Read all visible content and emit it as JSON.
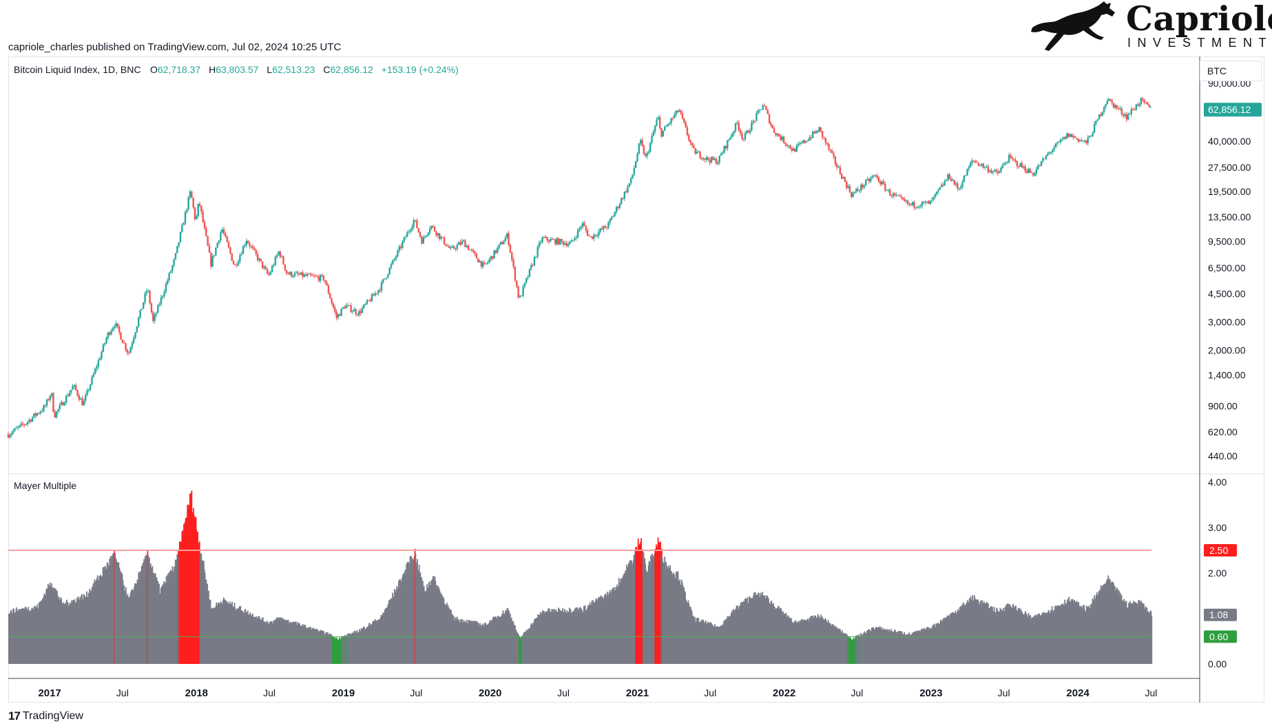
{
  "publisher": "capriole_charles published on TradingView.com, Jul 02, 2024 10:25 UTC",
  "brand": {
    "name": "Capriole",
    "subtitle": "INVESTMENTS"
  },
  "footer": {
    "logo": "17",
    "name": "TradingView"
  },
  "symbol_badge": "BTC",
  "colors": {
    "up": "#26a69a",
    "down": "#ef5350",
    "histogram": "#787b86",
    "hist_red": "#ff1e1e",
    "hist_green": "#2e9e3e",
    "upper_line": "#f4a1a1",
    "lower_line": "#4caf50"
  },
  "chart_data": [
    {
      "type": "candlestick",
      "title": "Bitcoin Liquid Index, 1D, BNC",
      "ohlc_readout": {
        "o_label": "O",
        "o": "62,718.37",
        "h_label": "H",
        "h": "63,803.57",
        "l_label": "L",
        "l": "62,513.23",
        "c_label": "C",
        "c": "62,856.12",
        "change": "+153.19 (+0.24%)"
      },
      "scale": "log",
      "last_price_label": "62,856.12",
      "y_ticks": [
        "90,000.00",
        "40,000.00",
        "27,500.00",
        "19,500.00",
        "13,500.00",
        "9,500.00",
        "6,500.00",
        "4,500.00",
        "3,000.00",
        "2,000.00",
        "1,400.00",
        "900.00",
        "620.00",
        "440.00"
      ],
      "y_tick_values": [
        90000,
        40000,
        27500,
        19500,
        13500,
        9500,
        6500,
        4500,
        3000,
        2000,
        1400,
        900,
        620,
        440
      ],
      "x_time_range": [
        "2016-09-20",
        "2024-07-02"
      ],
      "price_path": [
        [
          "2016-09-20",
          600
        ],
        [
          "2016-11-01",
          700
        ],
        [
          "2016-12-20",
          890
        ],
        [
          "2017-01-05",
          1100
        ],
        [
          "2017-01-12",
          780
        ],
        [
          "2017-03-01",
          1200
        ],
        [
          "2017-03-25",
          920
        ],
        [
          "2017-05-25",
          2500
        ],
        [
          "2017-06-12",
          2950
        ],
        [
          "2017-07-16",
          1900
        ],
        [
          "2017-09-01",
          4900
        ],
        [
          "2017-09-15",
          3000
        ],
        [
          "2017-11-08",
          7400
        ],
        [
          "2017-12-17",
          19500
        ],
        [
          "2017-12-30",
          12500
        ],
        [
          "2018-01-07",
          17000
        ],
        [
          "2018-02-06",
          6900
        ],
        [
          "2018-03-05",
          11500
        ],
        [
          "2018-04-06",
          6600
        ],
        [
          "2018-05-05",
          9800
        ],
        [
          "2018-06-29",
          5800
        ],
        [
          "2018-07-25",
          8300
        ],
        [
          "2018-08-14",
          6000
        ],
        [
          "2018-11-14",
          5600
        ],
        [
          "2018-12-15",
          3200
        ],
        [
          "2019-01-05",
          3800
        ],
        [
          "2019-02-08",
          3400
        ],
        [
          "2019-04-02",
          4900
        ],
        [
          "2019-05-15",
          8000
        ],
        [
          "2019-06-26",
          13000
        ],
        [
          "2019-07-16",
          9500
        ],
        [
          "2019-08-06",
          12000
        ],
        [
          "2019-09-25",
          8400
        ],
        [
          "2019-10-26",
          9500
        ],
        [
          "2019-12-17",
          6600
        ],
        [
          "2020-02-13",
          10400
        ],
        [
          "2020-03-13",
          4100
        ],
        [
          "2020-05-08",
          9900
        ],
        [
          "2020-07-20",
          9200
        ],
        [
          "2020-08-17",
          12300
        ],
        [
          "2020-09-05",
          10000
        ],
        [
          "2020-10-20",
          12000
        ],
        [
          "2020-12-17",
          23000
        ],
        [
          "2021-01-08",
          40000
        ],
        [
          "2021-01-22",
          31000
        ],
        [
          "2021-02-21",
          57000
        ],
        [
          "2021-02-28",
          44000
        ],
        [
          "2021-04-14",
          63000
        ],
        [
          "2021-05-19",
          35000
        ],
        [
          "2021-06-22",
          31000
        ],
        [
          "2021-07-20",
          30000
        ],
        [
          "2021-09-06",
          52000
        ],
        [
          "2021-09-21",
          41000
        ],
        [
          "2021-11-10",
          68000
        ],
        [
          "2021-12-04",
          47000
        ],
        [
          "2022-01-24",
          35000
        ],
        [
          "2022-03-29",
          47500
        ],
        [
          "2022-05-12",
          28000
        ],
        [
          "2022-06-18",
          18500
        ],
        [
          "2022-08-14",
          24500
        ],
        [
          "2022-09-20",
          19000
        ],
        [
          "2022-11-09",
          16000
        ],
        [
          "2022-12-31",
          16500
        ],
        [
          "2023-02-15",
          24500
        ],
        [
          "2023-03-10",
          20000
        ],
        [
          "2023-04-14",
          30500
        ],
        [
          "2023-06-15",
          25000
        ],
        [
          "2023-07-13",
          31500
        ],
        [
          "2023-09-11",
          25000
        ],
        [
          "2023-10-24",
          34500
        ],
        [
          "2023-12-08",
          44000
        ],
        [
          "2024-01-23",
          39000
        ],
        [
          "2024-03-14",
          73000
        ],
        [
          "2024-05-01",
          57000
        ],
        [
          "2024-06-05",
          71500
        ],
        [
          "2024-07-02",
          62856
        ]
      ]
    },
    {
      "type": "bar",
      "title": "Mayer Multiple",
      "y_ticks": [
        "4.00",
        "3.00",
        "2.00",
        "0.00"
      ],
      "y_tick_values": [
        4,
        3,
        2,
        0
      ],
      "current_value_label": "1.08",
      "threshold_labels": [
        {
          "value": 2.5,
          "label": "2.50",
          "kind": "upper"
        },
        {
          "value": 0.6,
          "label": "0.60",
          "kind": "lower"
        }
      ],
      "series_path": [
        [
          "2016-09-20",
          1.15
        ],
        [
          "2016-12-01",
          1.25
        ],
        [
          "2017-01-04",
          1.8
        ],
        [
          "2017-02-01",
          1.3
        ],
        [
          "2017-04-01",
          1.5
        ],
        [
          "2017-06-10",
          2.4
        ],
        [
          "2017-07-15",
          1.4
        ],
        [
          "2017-09-01",
          2.4
        ],
        [
          "2017-10-01",
          1.6
        ],
        [
          "2017-11-10",
          2.2
        ],
        [
          "2017-12-17",
          3.7
        ],
        [
          "2018-01-08",
          2.6
        ],
        [
          "2018-02-06",
          1.2
        ],
        [
          "2018-03-05",
          1.4
        ],
        [
          "2018-06-29",
          0.9
        ],
        [
          "2018-07-25",
          1.0
        ],
        [
          "2018-11-25",
          0.65
        ],
        [
          "2018-12-15",
          0.55
        ],
        [
          "2019-02-01",
          0.7
        ],
        [
          "2019-04-02",
          1.0
        ],
        [
          "2019-05-15",
          1.7
        ],
        [
          "2019-06-26",
          2.45
        ],
        [
          "2019-07-20",
          1.6
        ],
        [
          "2019-08-10",
          1.9
        ],
        [
          "2019-10-01",
          1.0
        ],
        [
          "2019-12-17",
          0.85
        ],
        [
          "2020-02-13",
          1.2
        ],
        [
          "2020-03-13",
          0.55
        ],
        [
          "2020-05-08",
          1.15
        ],
        [
          "2020-08-17",
          1.2
        ],
        [
          "2020-11-01",
          1.6
        ],
        [
          "2020-12-20",
          2.3
        ],
        [
          "2021-01-08",
          2.8
        ],
        [
          "2021-01-22",
          2.0
        ],
        [
          "2021-02-21",
          2.7
        ],
        [
          "2021-03-10",
          2.2
        ],
        [
          "2021-04-14",
          1.9
        ],
        [
          "2021-05-19",
          1.0
        ],
        [
          "2021-07-20",
          0.8
        ],
        [
          "2021-09-06",
          1.25
        ],
        [
          "2021-10-15",
          1.5
        ],
        [
          "2021-11-10",
          1.5
        ],
        [
          "2022-01-24",
          0.9
        ],
        [
          "2022-03-29",
          1.05
        ],
        [
          "2022-05-15",
          0.75
        ],
        [
          "2022-06-18",
          0.55
        ],
        [
          "2022-08-14",
          0.8
        ],
        [
          "2022-11-09",
          0.65
        ],
        [
          "2023-01-01",
          0.8
        ],
        [
          "2023-03-01",
          1.15
        ],
        [
          "2023-04-14",
          1.45
        ],
        [
          "2023-06-15",
          1.15
        ],
        [
          "2023-07-13",
          1.3
        ],
        [
          "2023-09-11",
          1.0
        ],
        [
          "2023-12-08",
          1.4
        ],
        [
          "2024-01-23",
          1.2
        ],
        [
          "2024-03-14",
          1.85
        ],
        [
          "2024-05-01",
          1.3
        ],
        [
          "2024-06-05",
          1.35
        ],
        [
          "2024-07-02",
          1.08
        ]
      ]
    }
  ],
  "x_axis": {
    "ticks": [
      {
        "label": "2017",
        "date": "2017-01-01",
        "year": true
      },
      {
        "label": "Jul",
        "date": "2017-07-01",
        "year": false
      },
      {
        "label": "2018",
        "date": "2018-01-01",
        "year": true
      },
      {
        "label": "Jul",
        "date": "2018-07-01",
        "year": false
      },
      {
        "label": "2019",
        "date": "2019-01-01",
        "year": true
      },
      {
        "label": "Jul",
        "date": "2019-07-01",
        "year": false
      },
      {
        "label": "2020",
        "date": "2020-01-01",
        "year": true
      },
      {
        "label": "Jul",
        "date": "2020-07-01",
        "year": false
      },
      {
        "label": "2021",
        "date": "2021-01-01",
        "year": true
      },
      {
        "label": "Jul",
        "date": "2021-07-01",
        "year": false
      },
      {
        "label": "2022",
        "date": "2022-01-01",
        "year": true
      },
      {
        "label": "Jul",
        "date": "2022-07-01",
        "year": false
      },
      {
        "label": "2023",
        "date": "2023-01-01",
        "year": true
      },
      {
        "label": "Jul",
        "date": "2023-07-01",
        "year": false
      },
      {
        "label": "2024",
        "date": "2024-01-01",
        "year": true
      },
      {
        "label": "Jul",
        "date": "2024-07-01",
        "year": false
      }
    ]
  }
}
